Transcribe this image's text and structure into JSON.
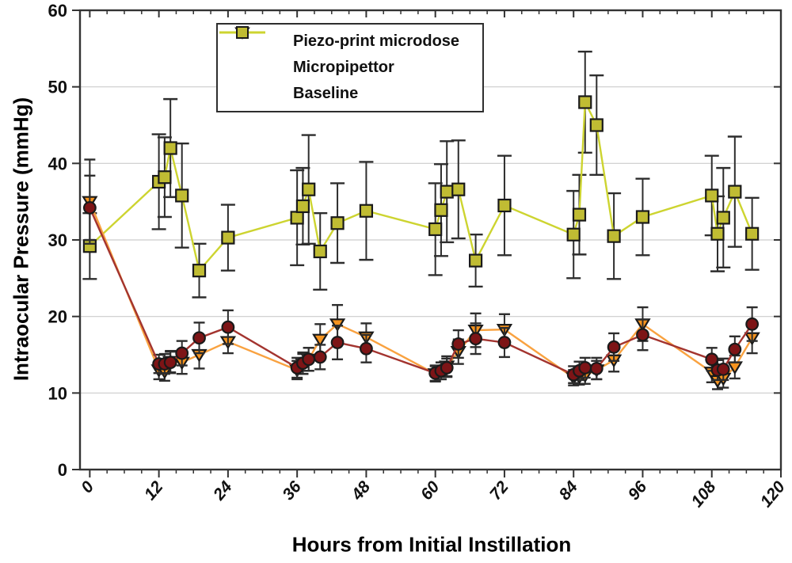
{
  "chart_data": {
    "type": "line",
    "title": "",
    "xlabel": "Hours from Initial Instillation",
    "ylabel": "Intraocular Pressure (mmHg)",
    "xlim": [
      -1.7,
      120
    ],
    "ylim": [
      0,
      60
    ],
    "x_major_ticks": [
      0,
      12,
      24,
      36,
      48,
      60,
      72,
      84,
      96,
      108,
      120
    ],
    "x_minor_tick_step": 3,
    "y_major_ticks": [
      0,
      10,
      20,
      30,
      40,
      50,
      60
    ],
    "grid": "horizontal gridlines at 10,20,30,40,50",
    "legend_position": "top-left-inside",
    "error_bars": true,
    "axis_color": "#333333",
    "grid_color": "#cccccc",
    "error_bar_color": "#2d2d2d",
    "series": [
      {
        "name": "Piezo-print microdose",
        "marker": "circle",
        "marker_color": "#7d1416",
        "line_color": "#a3342f",
        "x": [
          0,
          12,
          13,
          14,
          16,
          19,
          24,
          36,
          37,
          38,
          40,
          43,
          48,
          60,
          61,
          62,
          64,
          67,
          72,
          84,
          85,
          86,
          88,
          91,
          96,
          108,
          109,
          110,
          112,
          115
        ],
        "y": [
          34.2,
          13.8,
          13.8,
          14.0,
          15.2,
          17.2,
          18.6,
          13.3,
          13.9,
          14.4,
          14.7,
          16.6,
          15.8,
          12.6,
          12.9,
          13.3,
          16.4,
          17.1,
          16.6,
          12.4,
          12.9,
          13.3,
          13.2,
          16.0,
          17.6,
          14.4,
          13.0,
          13.1,
          15.7,
          19.0
        ],
        "err": [
          4.2,
          1.2,
          1.3,
          1.4,
          1.6,
          2.0,
          2.2,
          1.3,
          1.4,
          1.5,
          1.6,
          2.2,
          1.8,
          1.0,
          1.1,
          1.2,
          1.8,
          2.0,
          1.9,
          1.1,
          1.2,
          1.3,
          1.4,
          1.8,
          2.0,
          1.5,
          1.3,
          1.4,
          1.7,
          2.2
        ]
      },
      {
        "name": "Micropipettor",
        "marker": "triangle-down",
        "marker_color": "#f6941f",
        "line_color": "#f9a240",
        "x": [
          0,
          12,
          13,
          14,
          16,
          19,
          24,
          36,
          37,
          38,
          40,
          43,
          48,
          60,
          61,
          62,
          64,
          67,
          72,
          84,
          85,
          86,
          88,
          91,
          96,
          108,
          109,
          110,
          112,
          115
        ],
        "y": [
          35.0,
          13.0,
          12.8,
          14.1,
          14.0,
          15.0,
          16.7,
          13.0,
          13.8,
          14.4,
          17.0,
          19.0,
          17.3,
          12.5,
          12.9,
          13.5,
          15.4,
          18.2,
          18.3,
          12.0,
          12.1,
          12.3,
          13.0,
          14.3,
          19.0,
          12.7,
          11.6,
          11.9,
          13.4,
          17.2
        ],
        "err": [
          5.5,
          1.2,
          1.2,
          1.4,
          1.5,
          1.8,
          1.5,
          1.2,
          1.3,
          1.5,
          2.0,
          2.5,
          1.8,
          1.0,
          1.1,
          1.3,
          1.6,
          2.2,
          2.0,
          1.0,
          1.0,
          1.1,
          1.2,
          1.5,
          2.2,
          1.3,
          1.1,
          1.2,
          1.5,
          2.0
        ]
      },
      {
        "name": "Baseline",
        "marker": "square",
        "marker_color": "#c0bc33",
        "line_color": "#cdd430",
        "x": [
          0,
          12,
          13,
          14,
          16,
          19,
          24,
          36,
          37,
          38,
          40,
          43,
          48,
          60,
          61,
          62,
          64,
          67,
          72,
          84,
          85,
          86,
          88,
          91,
          96,
          108,
          109,
          110,
          112,
          115
        ],
        "y": [
          29.2,
          37.6,
          38.2,
          42.0,
          35.8,
          26.0,
          30.3,
          32.9,
          34.4,
          36.6,
          28.5,
          32.2,
          33.8,
          31.4,
          33.9,
          36.3,
          36.6,
          27.3,
          34.5,
          30.7,
          33.3,
          48.0,
          45.0,
          30.5,
          33.0,
          35.8,
          30.8,
          32.9,
          36.3,
          30.8
        ],
        "err": [
          4.3,
          6.2,
          5.2,
          6.4,
          6.8,
          3.5,
          4.3,
          6.2,
          5.0,
          7.1,
          5.0,
          5.2,
          6.4,
          6.0,
          6.0,
          6.6,
          6.4,
          3.4,
          6.5,
          5.7,
          5.2,
          6.6,
          6.5,
          5.6,
          5.0,
          5.2,
          4.9,
          6.5,
          7.2,
          4.7
        ]
      }
    ]
  }
}
